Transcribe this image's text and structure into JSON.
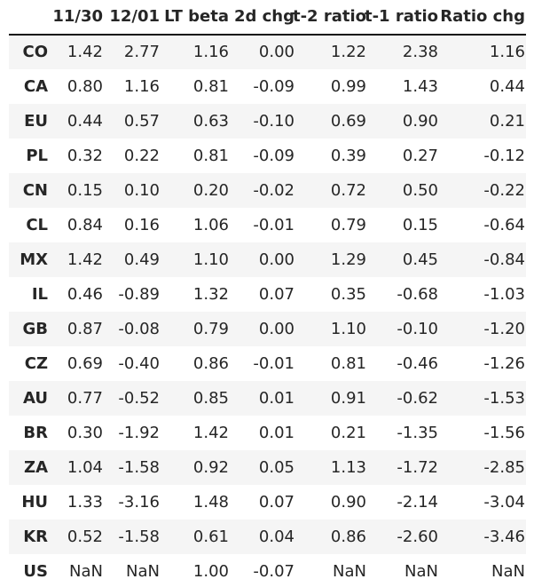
{
  "chart_data": {
    "type": "table",
    "columns": [
      "11/30",
      "12/01",
      "LT beta",
      "2d chg",
      "t-2 ratio",
      "t-1 ratio",
      "Ratio chg"
    ],
    "rows": [
      {
        "label": "CO",
        "values": [
          "1.42",
          "2.77",
          "1.16",
          "0.00",
          "1.22",
          "2.38",
          "1.16"
        ]
      },
      {
        "label": "CA",
        "values": [
          "0.80",
          "1.16",
          "0.81",
          "-0.09",
          "0.99",
          "1.43",
          "0.44"
        ]
      },
      {
        "label": "EU",
        "values": [
          "0.44",
          "0.57",
          "0.63",
          "-0.10",
          "0.69",
          "0.90",
          "0.21"
        ]
      },
      {
        "label": "PL",
        "values": [
          "0.32",
          "0.22",
          "0.81",
          "-0.09",
          "0.39",
          "0.27",
          "-0.12"
        ]
      },
      {
        "label": "CN",
        "values": [
          "0.15",
          "0.10",
          "0.20",
          "-0.02",
          "0.72",
          "0.50",
          "-0.22"
        ]
      },
      {
        "label": "CL",
        "values": [
          "0.84",
          "0.16",
          "1.06",
          "-0.01",
          "0.79",
          "0.15",
          "-0.64"
        ]
      },
      {
        "label": "MX",
        "values": [
          "1.42",
          "0.49",
          "1.10",
          "0.00",
          "1.29",
          "0.45",
          "-0.84"
        ]
      },
      {
        "label": "IL",
        "values": [
          "0.46",
          "-0.89",
          "1.32",
          "0.07",
          "0.35",
          "-0.68",
          "-1.03"
        ]
      },
      {
        "label": "GB",
        "values": [
          "0.87",
          "-0.08",
          "0.79",
          "0.00",
          "1.10",
          "-0.10",
          "-1.20"
        ]
      },
      {
        "label": "CZ",
        "values": [
          "0.69",
          "-0.40",
          "0.86",
          "-0.01",
          "0.81",
          "-0.46",
          "-1.26"
        ]
      },
      {
        "label": "AU",
        "values": [
          "0.77",
          "-0.52",
          "0.85",
          "0.01",
          "0.91",
          "-0.62",
          "-1.53"
        ]
      },
      {
        "label": "BR",
        "values": [
          "0.30",
          "-1.92",
          "1.42",
          "0.01",
          "0.21",
          "-1.35",
          "-1.56"
        ]
      },
      {
        "label": "ZA",
        "values": [
          "1.04",
          "-1.58",
          "0.92",
          "0.05",
          "1.13",
          "-1.72",
          "-2.85"
        ]
      },
      {
        "label": "HU",
        "values": [
          "1.33",
          "-3.16",
          "1.48",
          "0.07",
          "0.90",
          "-2.14",
          "-3.04"
        ]
      },
      {
        "label": "KR",
        "values": [
          "0.52",
          "-1.58",
          "0.61",
          "0.04",
          "0.86",
          "-2.60",
          "-3.46"
        ]
      },
      {
        "label": "US",
        "values": [
          "NaN",
          "NaN",
          "1.00",
          "-0.07",
          "NaN",
          "NaN",
          "NaN"
        ]
      }
    ],
    "striped_rows": true,
    "colors": {
      "text": "#262626",
      "stripe": "#f5f5f5",
      "header_rule": "#111111",
      "background": "#ffffff"
    }
  }
}
